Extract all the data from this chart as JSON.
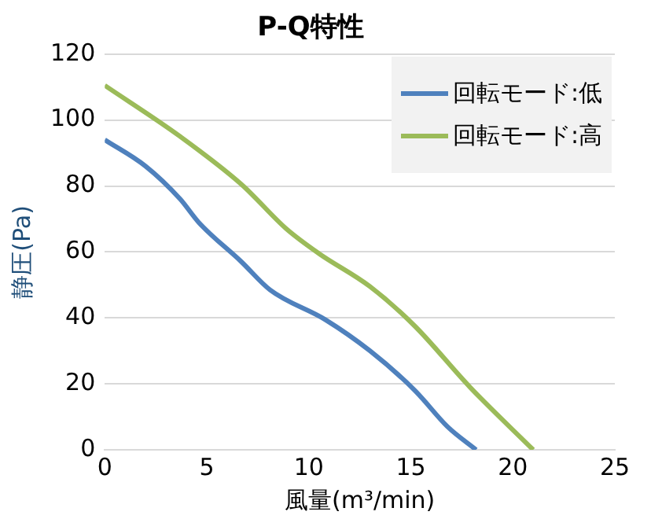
{
  "chart_data": {
    "type": "line",
    "title": "P-Q特性",
    "xlabel": "風量(m³/min)",
    "ylabel": "静圧(Pa)",
    "xlim": [
      0,
      25
    ],
    "xticks": [
      0,
      5,
      10,
      15,
      20,
      25
    ],
    "ylim": [
      0,
      120
    ],
    "yticks": [
      0,
      20,
      40,
      60,
      80,
      100,
      120
    ],
    "grid": "y",
    "legend": "top right",
    "marker": "none",
    "line_style": "solid",
    "series": [
      {
        "name": "回転モード:低",
        "color": "#4f81bd",
        "x": [
          0,
          2,
          3.7,
          4.6,
          6.7,
          8.1,
          10.8,
          13,
          15.2,
          16.8,
          18.2
        ],
        "values": [
          94,
          86,
          76,
          69,
          57,
          48.5,
          39.5,
          30,
          18,
          7,
          0
        ]
      },
      {
        "name": "回転モード:高",
        "color": "#9bbb59",
        "x": [
          0,
          3.7,
          6.7,
          8.9,
          10.5,
          13,
          15.2,
          17.9,
          21
        ],
        "values": [
          110.5,
          95,
          80.5,
          67,
          59.5,
          49.5,
          37.5,
          19,
          0
        ]
      }
    ]
  }
}
